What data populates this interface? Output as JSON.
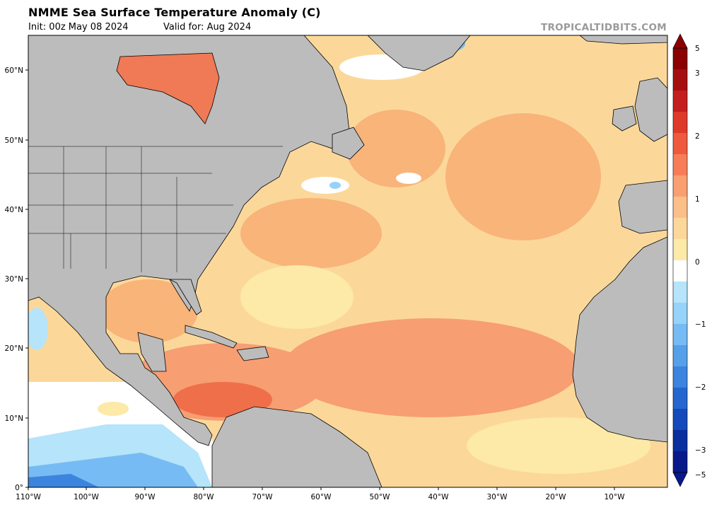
{
  "header": {
    "title": "NMME Sea Surface Temperature Anomaly (C)",
    "init": "Init: 00z May 08 2024",
    "valid": "Valid for: Aug 2024",
    "credit": "TROPICALTIDBITS.COM"
  },
  "map": {
    "region": "North Atlantic",
    "lon_range": [
      -110,
      0
    ],
    "lat_range": [
      0,
      65
    ],
    "x_ticks": [
      "110°W",
      "100°W",
      "90°W",
      "80°W",
      "70°W",
      "60°W",
      "50°W",
      "40°W",
      "30°W",
      "20°W",
      "10°W"
    ],
    "y_ticks": [
      "60°N",
      "50°N",
      "40°N",
      "30°N",
      "20°N",
      "10°N",
      "0°"
    ],
    "land_color": "#bcbcbc",
    "anomaly_features": [
      {
        "area": "Hudson Bay",
        "level": 2.0
      },
      {
        "area": "Western Caribbean",
        "level": 2.0
      },
      {
        "area": "Tropical Atlantic MDR",
        "level": 1.5
      },
      {
        "area": "Gulf of Mexico",
        "level": 1.2
      },
      {
        "area": "Central subtropical Atlantic",
        "level": 0.5
      },
      {
        "area": "Eastern Tropical Pacific",
        "level": -1.0
      },
      {
        "area": "Labrador / Denmark Strait",
        "level": -1.5
      }
    ]
  },
  "colorbar": {
    "labels": [
      "5",
      "3",
      "2",
      "1",
      "0",
      "−1",
      "−2",
      "−3",
      "−5"
    ],
    "colors": [
      "#8b0000",
      "#a50f0f",
      "#c41e1e",
      "#de3a2a",
      "#ee5a3e",
      "#f77d58",
      "#f99f72",
      "#fbbf8a",
      "#fcd79a",
      "#fde9a8",
      "#ffffff",
      "#b5e4fb",
      "#96d2f9",
      "#76bbf3",
      "#56a0ea",
      "#3c84de",
      "#2566cf",
      "#144abb",
      "#0a2f9e",
      "#08198a"
    ]
  }
}
